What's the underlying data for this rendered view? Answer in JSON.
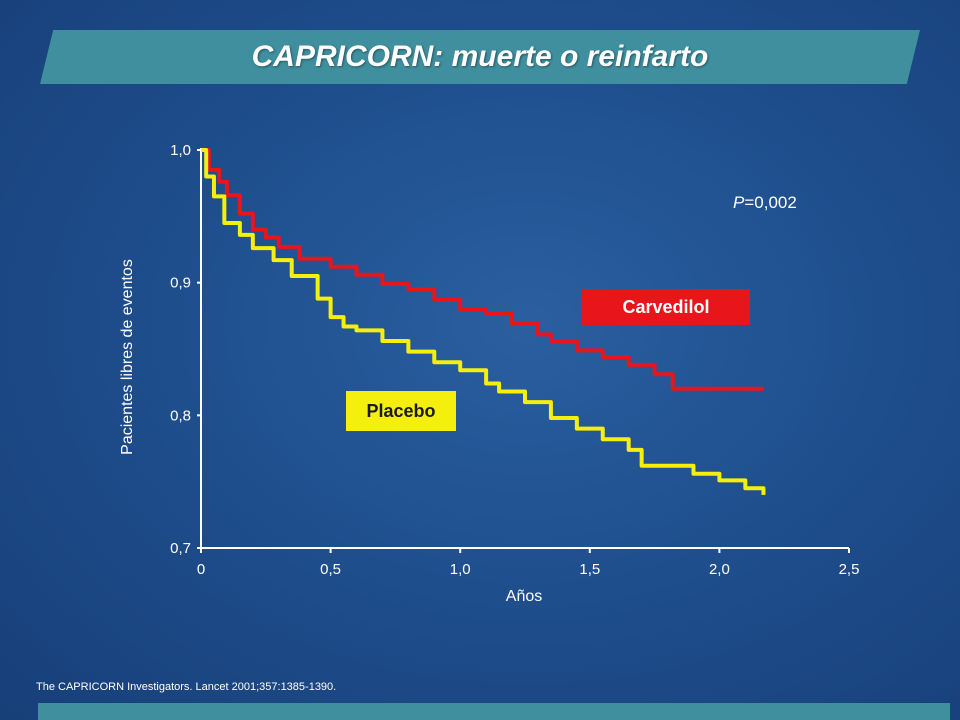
{
  "header": {
    "title": "CAPRICORN: muerte o reinfarto"
  },
  "citation": "The CAPRICORN  Investigators. Lancet 2001;357:1385-1390.",
  "chart_data": {
    "type": "line",
    "title": "CAPRICORN: muerte o reinfarto",
    "xlabel": "Años",
    "ylabel": "Pacientes libres de eventos",
    "xlim": [
      0,
      2.5
    ],
    "ylim": [
      0.7,
      1.0
    ],
    "x_ticks": [
      0,
      0.5,
      1.0,
      1.5,
      2.0,
      2.5
    ],
    "x_tick_labels": [
      "0",
      "0,5",
      "1,0",
      "1,5",
      "2,0",
      "2,5"
    ],
    "y_ticks": [
      0.7,
      0.8,
      0.9,
      1.0
    ],
    "y_tick_labels": [
      "0,7",
      "0,8",
      "0,9",
      "1,0"
    ],
    "grid": false,
    "annotation": {
      "italic_prefix": "P",
      "rest": "=0,002"
    },
    "series": [
      {
        "name": "Carvedilol",
        "color": "#e8151b",
        "x": [
          0,
          0.03,
          0.07,
          0.1,
          0.15,
          0.2,
          0.25,
          0.3,
          0.38,
          0.45,
          0.5,
          0.6,
          0.7,
          0.8,
          0.9,
          1.0,
          1.1,
          1.2,
          1.3,
          1.35,
          1.45,
          1.55,
          1.65,
          1.75,
          1.82,
          2.0,
          2.17
        ],
        "y": [
          1.0,
          0.985,
          0.976,
          0.966,
          0.952,
          0.94,
          0.934,
          0.927,
          0.918,
          0.918,
          0.912,
          0.906,
          0.899,
          0.895,
          0.887,
          0.88,
          0.877,
          0.869,
          0.861,
          0.856,
          0.849,
          0.844,
          0.838,
          0.831,
          0.82,
          0.82,
          0.82
        ]
      },
      {
        "name": "Placebo",
        "color": "#f5ef0e",
        "x": [
          0,
          0.02,
          0.05,
          0.09,
          0.15,
          0.2,
          0.28,
          0.35,
          0.45,
          0.5,
          0.55,
          0.6,
          0.7,
          0.8,
          0.9,
          1.0,
          1.1,
          1.15,
          1.25,
          1.35,
          1.45,
          1.55,
          1.65,
          1.7,
          1.8,
          1.9,
          2.0,
          2.1,
          2.17
        ],
        "y": [
          1.0,
          0.98,
          0.965,
          0.945,
          0.936,
          0.926,
          0.917,
          0.905,
          0.888,
          0.874,
          0.867,
          0.864,
          0.856,
          0.848,
          0.84,
          0.834,
          0.824,
          0.818,
          0.81,
          0.798,
          0.79,
          0.782,
          0.774,
          0.762,
          0.762,
          0.756,
          0.751,
          0.745,
          0.74
        ]
      }
    ]
  }
}
